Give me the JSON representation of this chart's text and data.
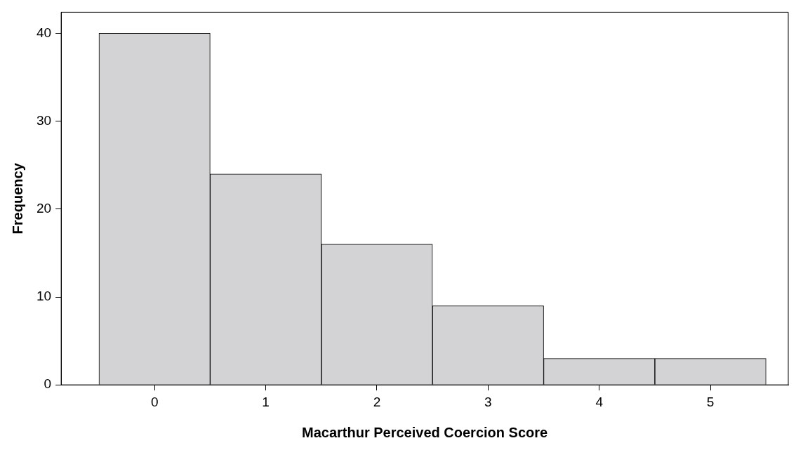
{
  "chart_data": {
    "type": "histogram",
    "xlabel": "Macarthur Perceived Coercion Score",
    "ylabel": "Frequency",
    "bins": [
      -0.5,
      0.5,
      1.5,
      2.5,
      3.5,
      4.5,
      5.5
    ],
    "values": [
      40,
      24,
      16,
      9,
      3,
      3
    ],
    "color": "#d3d3d5",
    "xlim": [
      -0.84,
      5.7
    ],
    "xticks": [
      0,
      1,
      2,
      3,
      4,
      5
    ],
    "ylim": [
      0,
      42.4
    ],
    "yticks": [
      0,
      10,
      20,
      30,
      40
    ],
    "grid": false,
    "legend": false
  }
}
